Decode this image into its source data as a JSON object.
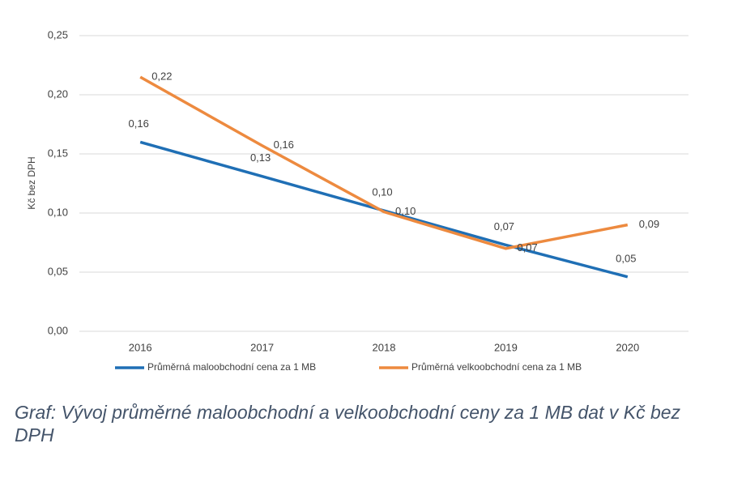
{
  "chart_data": {
    "type": "line",
    "y_label": "Kč bez DPH",
    "caption": "Graf: Vývoj průměrné maloobchodní a velkoobchodní ceny za 1 MB dat v Kč bez DPH",
    "categories": [
      "2016",
      "2017",
      "2018",
      "2019",
      "2020"
    ],
    "series": [
      {
        "name": "Průměrná maloobchodní cena za 1 MB",
        "color": "#1f6fb5",
        "values": [
          0.16,
          0.131,
          0.102,
          0.073,
          0.046
        ],
        "value_labels": [
          "0,16",
          "0,13",
          "0,10",
          "0,07",
          "0,05"
        ]
      },
      {
        "name": "Průměrná velkoobchodní cena za 1 MB",
        "color": "#ed8a3f",
        "values": [
          0.215,
          0.157,
          0.101,
          0.07,
          0.09
        ],
        "value_labels": [
          "0,22",
          "0,16",
          "0,10",
          "0,07",
          "0,09"
        ]
      }
    ],
    "ylim": [
      0,
      0.25
    ],
    "yticks": [
      {
        "value": 0,
        "label": "0,00"
      },
      {
        "value": 0.05,
        "label": "0,05"
      },
      {
        "value": 0.1,
        "label": "0,10"
      },
      {
        "value": 0.15,
        "label": "0,15"
      },
      {
        "value": 0.2,
        "label": "0,20"
      },
      {
        "value": 0.25,
        "label": "0,25"
      }
    ],
    "grid": true
  }
}
